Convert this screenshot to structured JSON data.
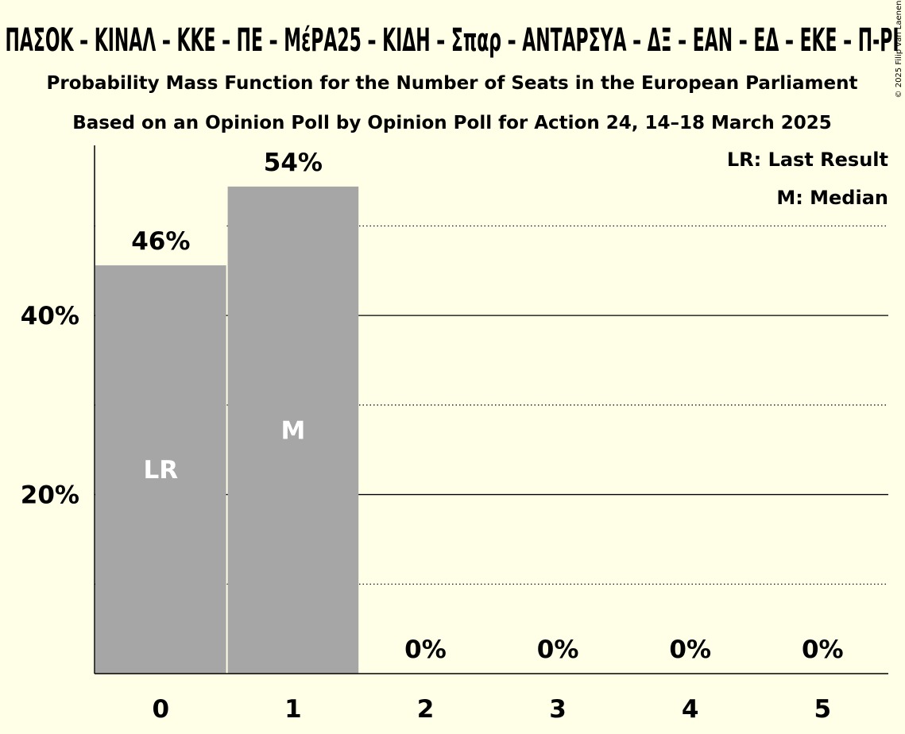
{
  "chart_data": {
    "type": "bar",
    "title": "ΠΑΣΟΚ – ΚΙΝΑΛ – ΚΚΕ – ΠΕ – ΜέΡΑ25 – ΚΙΔΗ – Σπαρ – ΑΝΤΑΡΣΥΑ – ΔΞ – ΕΑΝ – ΕΔ – ΕΚΕ – Π-ΡΙ",
    "subtitle": "Probability Mass Function for the Number of Seats in the European Parliament",
    "subtitle2": "Based on an Opinion Poll by Opinion Poll for Action 24, 14–18 March 2025",
    "categories": [
      "0",
      "1",
      "2",
      "3",
      "4",
      "5"
    ],
    "values": [
      45.6,
      54.4,
      0,
      0,
      0,
      0
    ],
    "value_labels": [
      "46%",
      "54%",
      "0%",
      "0%",
      "0%",
      "0%"
    ],
    "bar_markers": [
      "LR",
      "M",
      "",
      "",
      "",
      ""
    ],
    "ylim": [
      0,
      59
    ],
    "y_ticks": [
      {
        "value": 20,
        "label": "20%"
      },
      {
        "value": 40,
        "label": "40%"
      }
    ],
    "gridlines": {
      "solid": [
        20,
        40
      ],
      "dotted": [
        10,
        30,
        50
      ]
    },
    "legend": [
      {
        "label": "LR: Last Result"
      },
      {
        "label": "M: Median"
      }
    ],
    "legend_position": "top-right",
    "colors": {
      "background": "#fffee6",
      "bar": "#a6a6a6",
      "axis": "#000000",
      "marker_text": "#ffffff"
    },
    "copyright": "© 2025 Filip van Laenen"
  }
}
